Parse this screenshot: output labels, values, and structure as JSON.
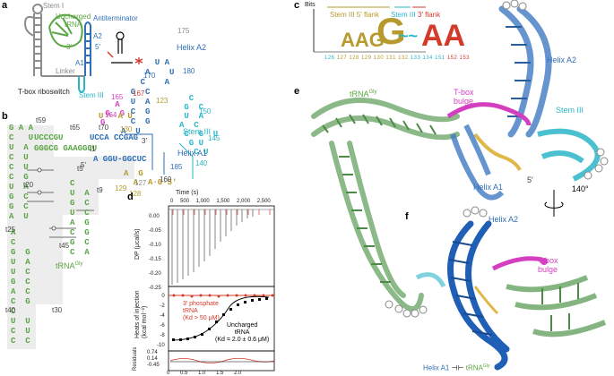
{
  "panels": {
    "a": {
      "label": "a",
      "stem_i": "Stem I",
      "uncharged_trna": "Uncharged\ntRNA",
      "antiterminator": "Antiterminator",
      "a2": "A2",
      "a1": "A1",
      "linker": "Linker",
      "stem_iii": "Stem III",
      "riboswitch": "T-box riboswitch",
      "five_prime": "5′",
      "three_prime": "3′"
    },
    "b": {
      "label": "b",
      "trna_label": "tRNA",
      "trna_sup": "Gly",
      "helix_a2": "Helix A2",
      "helix_a1": "Helix A1",
      "stem_iii": "Stem III",
      "five_prime": "5′",
      "three_prime": "3′",
      "acceptor_top": "UCCCGU",
      "acceptor_bottom": "GGGCG GAAGGCU",
      "helix_a1_top": "UCCA CCGAG",
      "helix_a1_bottom": "A GGU-GGCUC",
      "numbers": [
        "t59",
        "t65",
        "t70",
        "t1",
        "t5",
        "t9",
        "t20",
        "t25",
        "t30",
        "t40",
        "t45",
        "164",
        "165",
        "167",
        "170",
        "175",
        "180",
        "185",
        "150",
        "145",
        "140",
        "130",
        "129",
        "128",
        "127",
        "160",
        "123"
      ]
    },
    "c": {
      "label": "c",
      "bits": "Bits",
      "stem_iii_5_flank": "Stem III 5′ flank",
      "stem_iii": "Stem III",
      "flank_3": "3′ flank",
      "positions": [
        "126",
        "127",
        "128",
        "129",
        "130",
        "131",
        "132",
        "133",
        "134",
        "151",
        "152",
        "153"
      ],
      "logo_letters": [
        "A",
        "A",
        "G",
        "G",
        "A",
        "A"
      ]
    },
    "d": {
      "label": "d",
      "time_label": "Time (s)",
      "time_ticks": [
        "0",
        "500",
        "1,000",
        "1,500",
        "2,000",
        "2,500"
      ],
      "dp_label": "DP (μcal/s)",
      "dp_ticks": [
        "0.00",
        "-0.05",
        "-0.10",
        "-0.15",
        "-0.20",
        "-0.25"
      ],
      "heats_label": "Heats of injection\n(kcal mol⁻¹)",
      "heats_ticks": [
        "0",
        "-2",
        "-4",
        "-6",
        "-8",
        "-10"
      ],
      "residuals_label": "Residuals",
      "residual_ticks": [
        "0.74",
        "0.14",
        "-0.45"
      ],
      "molar_ticks": [
        "0",
        "0.5",
        "1.0",
        "1.5",
        "2.0"
      ],
      "phosphate_label": "3′ phosphate\ntRNA\n(Kd > 50 μM)",
      "uncharged_label": "Uncharged\ntRNA\n(Kd = 2.0 ± 0.6 μM)"
    },
    "e": {
      "label": "e",
      "trna_label": "tRNA",
      "trna_sup": "Gly",
      "tbox_bulge": "T-box\nbulge",
      "stem_iii": "Stem III",
      "helix_a2": "Helix A2",
      "helix_a1": "Helix A1",
      "five_prime": "5′",
      "rotation": "140°"
    },
    "f": {
      "label": "f",
      "helix_a2": "Helix A2",
      "tbox_bulge": "T-box\nbulge",
      "helix_a1": "Helix A1",
      "trna_label": "tRNA",
      "trna_sup": "Gly"
    }
  },
  "colors": {
    "trna_green": "#5aa544",
    "helix_blue": "#2f6fb6",
    "stem_cyan": "#2bb6c8",
    "bulge_magenta": "#d43fc0",
    "linker_gold": "#b79a2e",
    "red": "#d43a2a",
    "grey": "#8c8c8c"
  }
}
